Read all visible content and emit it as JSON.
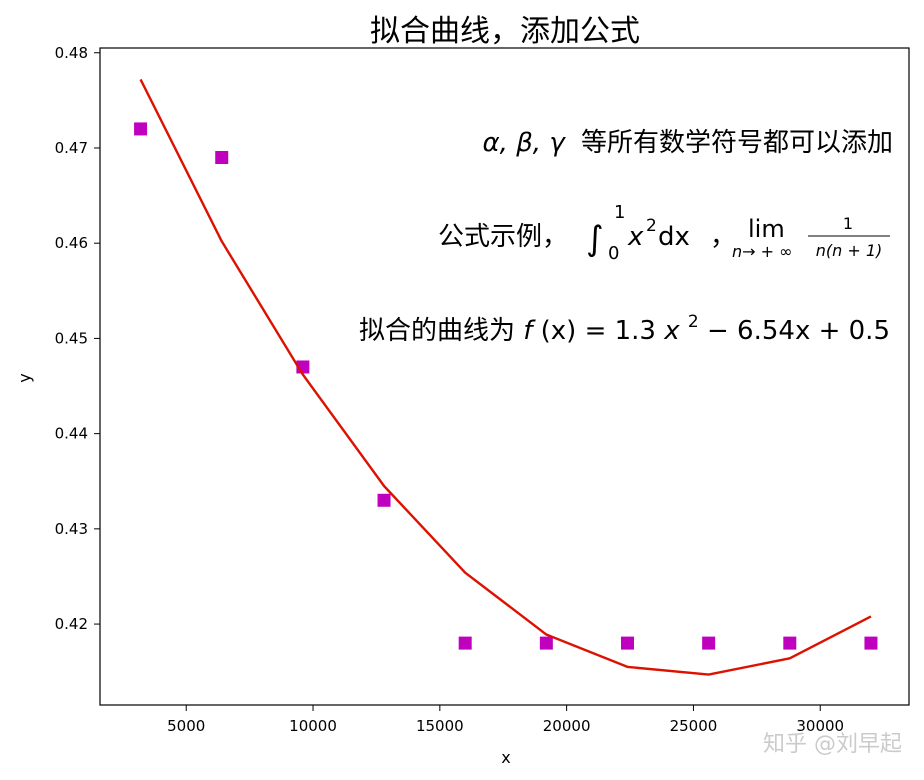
{
  "chart_data": {
    "type": "scatter",
    "title": "拟合曲线，添加公式",
    "xlabel": "x",
    "ylabel": "y",
    "xlim": [
      1600,
      33500
    ],
    "ylim": [
      0.4115,
      0.4805
    ],
    "xticks": [
      5000,
      10000,
      15000,
      20000,
      25000,
      30000
    ],
    "yticks": [
      0.42,
      0.43,
      0.44,
      0.45,
      0.46,
      0.47,
      0.48
    ],
    "ytick_labels": [
      "0.42",
      "0.43",
      "0.44",
      "0.45",
      "0.46",
      "0.47",
      "0.48"
    ],
    "grid": false,
    "scatter": {
      "marker": "square",
      "color": "#bf00bf",
      "x": [
        3200,
        6400,
        9600,
        12800,
        16000,
        19200,
        22400,
        25600,
        28800,
        32000
      ],
      "y": [
        0.472,
        0.469,
        0.447,
        0.433,
        0.418,
        0.418,
        0.418,
        0.418,
        0.418,
        0.418
      ]
    },
    "fit_line": {
      "color": "#dd1100",
      "x": [
        3200,
        6400,
        9600,
        12800,
        16000,
        19200,
        22400,
        25600,
        28800,
        32000
      ],
      "y": [
        0.4772,
        0.4602,
        0.4462,
        0.4345,
        0.4254,
        0.4189,
        0.4155,
        0.4147,
        0.4164,
        0.4208
      ]
    },
    "annotations": {
      "line1_symbols": "α, β, γ",
      "line1_text": "等所有数学符号都可以添加",
      "line2_prefix": "公式示例，",
      "line2_integral": "∫",
      "line2_int_upper": "1",
      "line2_int_lower": "0",
      "line2_x": "x",
      "line2_x_exp": "2",
      "line2_dx": " dx",
      "line2_sep": "，",
      "line2_lim": "lim",
      "line2_lim_sub": "n→ + ∞",
      "line2_frac_num": "1",
      "line2_frac_den": "n(n + 1)",
      "line3_prefix": "拟合的曲线为",
      "line3_f": "f",
      "line3_paren": "(x) = 1.3",
      "line3_x": "x",
      "line3_exp": "2",
      "line3_rest": " − 6.54x + 0.5"
    }
  },
  "watermark": "知乎 @刘早起"
}
